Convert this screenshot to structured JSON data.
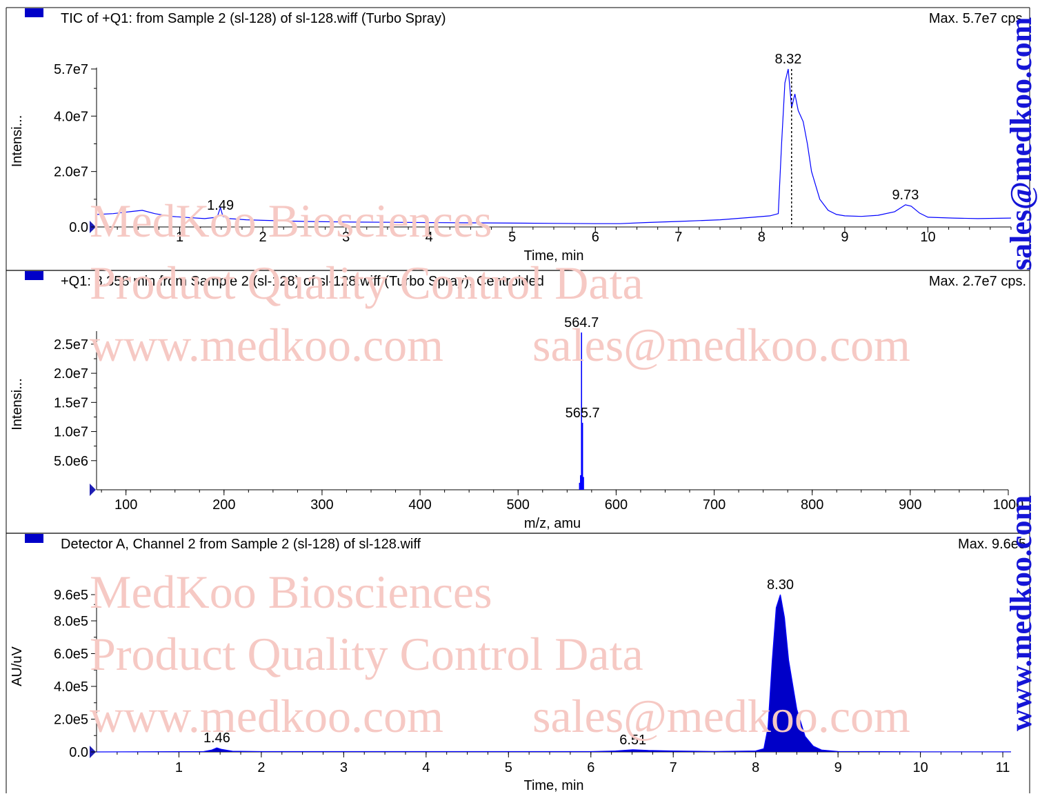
{
  "watermarks": {
    "company": "MedKoo Biosciences",
    "qc": "Product Quality Control Data",
    "web": "www.medkoo.com",
    "email": "sales@medkoo.com"
  },
  "side_text": {
    "email": "sales@medkoo.com",
    "web": "www.medkoo.com"
  },
  "colors": {
    "trace": "#0000ff",
    "fill": "#0000c8",
    "marker": "#1e1eb4",
    "watermark": "#f6c9c4",
    "side_text": "#1515d6"
  },
  "chart_data": [
    {
      "type": "line",
      "title": "TIC of +Q1: from Sample 2 (sl-128) of sl-128.wiff (Turbo Spray)",
      "max_label": "Max. 5.7e7 cps.",
      "xlabel": "Time, min",
      "ylabel": "Intensi...",
      "xlim": [
        0,
        11
      ],
      "ylim": [
        0,
        57000000.0
      ],
      "xticks": [
        1,
        2,
        3,
        4,
        5,
        6,
        7,
        8,
        9,
        10
      ],
      "yticks": [
        0,
        20000000.0,
        40000000.0,
        57000000.0
      ],
      "ytick_labels": [
        "0.0",
        "2.0e7",
        "4.0e7",
        "5.7e7"
      ],
      "cursor_x": 8.36,
      "annotations": [
        {
          "x": 1.49,
          "y": 4200000.0,
          "label": "1.49"
        },
        {
          "x": 8.32,
          "y": 57000000.0,
          "label": "8.32"
        },
        {
          "x": 9.73,
          "y": 8000000.0,
          "label": "9.73"
        }
      ],
      "series": [
        {
          "x": [
            0,
            0.2,
            0.4,
            0.55,
            0.7,
            0.9,
            1.1,
            1.3,
            1.45,
            1.49,
            1.52,
            1.6,
            1.8,
            2.0,
            2.5,
            3.0,
            3.5,
            4.0,
            4.5,
            5.0,
            5.5,
            6.0,
            6.3,
            6.6,
            7.0,
            7.5,
            7.9,
            8.1,
            8.2,
            8.24,
            8.28,
            8.32,
            8.36,
            8.4,
            8.44,
            8.5,
            8.55,
            8.6,
            8.7,
            8.8,
            8.9,
            9.0,
            9.2,
            9.4,
            9.6,
            9.73,
            9.8,
            9.9,
            10.0,
            10.3,
            10.6,
            11.0
          ],
          "y": [
            4500000.0,
            4800000.0,
            5500000.0,
            6000000.0,
            4800000.0,
            3800000.0,
            3400000.0,
            3000000.0,
            3500000.0,
            7000000.0,
            3800000.0,
            3000000.0,
            2600000.0,
            2400000.0,
            2000000.0,
            1800000.0,
            1700000.0,
            1600000.0,
            1500000.0,
            1400000.0,
            1300000.0,
            1200000.0,
            1200000.0,
            1600000.0,
            2000000.0,
            2600000.0,
            3500000.0,
            4000000.0,
            4800000.0,
            30000000.0,
            52000000.0,
            57000000.0,
            43000000.0,
            48000000.0,
            42000000.0,
            38000000.0,
            30000000.0,
            20000000.0,
            10000000.0,
            6000000.0,
            4500000.0,
            4000000.0,
            3800000.0,
            4200000.0,
            5500000.0,
            8000000.0,
            7500000.0,
            5000000.0,
            3500000.0,
            3200000.0,
            3000000.0,
            3200000.0
          ]
        }
      ]
    },
    {
      "type": "bar",
      "title": "+Q1: 8.358 min from Sample 2 (sl-128) of sl-128.wiff (Turbo Spray), Centroided",
      "max_label": "Max. 2.7e7 cps.",
      "xlabel": "m/z, amu",
      "ylabel": "Intensi...",
      "xlim": [
        70,
        1000
      ],
      "ylim": [
        0,
        27000000.0
      ],
      "xticks": [
        100,
        200,
        300,
        400,
        500,
        600,
        700,
        800,
        900,
        1000
      ],
      "yticks": [
        5000000.0,
        10000000.0,
        15000000.0,
        20000000.0,
        25000000.0
      ],
      "ytick_labels": [
        "5.0e6",
        "1.0e7",
        "1.5e7",
        "2.0e7",
        "2.5e7"
      ],
      "annotations": [
        {
          "x": 564.7,
          "y": 27000000.0,
          "label": "564.7"
        },
        {
          "x": 565.7,
          "y": 11500000.0,
          "label": "565.7"
        }
      ],
      "series": [
        {
          "x": [
            562.7,
            563.7,
            564.7,
            565.7,
            566.7
          ],
          "y": [
            1200000.0,
            2500000.0,
            27000000.0,
            11500000.0,
            2200000.0
          ]
        }
      ]
    },
    {
      "type": "area",
      "title": "Detector A, Channel 2 from Sample 2 (sl-128) of sl-128.wiff",
      "max_label": "Max. 9.6e5",
      "xlabel": "Time, min",
      "ylabel": "AU/uV",
      "xlim": [
        0,
        11.1
      ],
      "ylim": [
        0,
        960000.0
      ],
      "xticks": [
        1,
        2,
        3,
        4,
        5,
        6,
        7,
        8,
        9,
        10,
        11
      ],
      "yticks": [
        0,
        200000.0,
        400000.0,
        600000.0,
        800000.0,
        960000.0
      ],
      "ytick_labels": [
        "0.0",
        "2.0e5",
        "4.0e5",
        "6.0e5",
        "8.0e5",
        "9.6e5"
      ],
      "annotations": [
        {
          "x": 1.46,
          "y": 25000.0,
          "label": "1.46"
        },
        {
          "x": 6.51,
          "y": 13000.0,
          "label": "6.51"
        },
        {
          "x": 8.3,
          "y": 960000.0,
          "label": "8.30"
        }
      ],
      "series": [
        {
          "x": [
            0,
            1.3,
            1.4,
            1.46,
            1.52,
            1.65,
            2.0,
            3.0,
            4.0,
            5.0,
            6.0,
            6.3,
            6.51,
            6.7,
            7.0,
            7.5,
            8.0,
            8.1,
            8.15,
            8.2,
            8.25,
            8.3,
            8.35,
            8.4,
            8.5,
            8.6,
            8.7,
            8.8,
            9.0,
            10.0,
            11.1
          ],
          "y": [
            0,
            2000,
            12000,
            25000,
            15000,
            4000,
            2000,
            2000,
            2000,
            2000,
            2000,
            6000,
            13000,
            9000,
            6000,
            3000,
            6000,
            20000,
            150000,
            550000,
            880000,
            960000,
            820000,
            560000,
            260000,
            95000,
            35000,
            12000,
            3000,
            1000,
            1000
          ]
        }
      ]
    }
  ]
}
